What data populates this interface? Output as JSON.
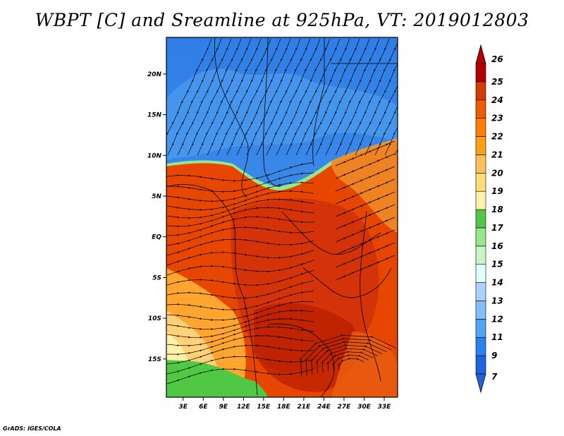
{
  "title": "WBPT [C] and Sreamline at 925hPa, VT: 2019012803",
  "credit": "GrADS: IGES/COLA",
  "map": {
    "lat_labels": [
      "20N",
      "15N",
      "10N",
      "5N",
      "EQ",
      "5S",
      "10S",
      "15S"
    ],
    "lat_values": [
      20,
      15,
      10,
      5,
      0,
      -5,
      -10,
      -15
    ],
    "lon_labels": [
      "3E",
      "6E",
      "9E",
      "12E",
      "15E",
      "18E",
      "21E",
      "24E",
      "27E",
      "30E",
      "33E"
    ],
    "lon_values": [
      3,
      6,
      9,
      12,
      15,
      18,
      21,
      24,
      27,
      30,
      33
    ],
    "lon_range": [
      0.5,
      35
    ],
    "lat_range": [
      -19.7,
      24.5
    ]
  },
  "colorbar": {
    "labels": [
      "7",
      "9",
      "11",
      "12",
      "13",
      "14",
      "15",
      "16",
      "17",
      "18",
      "19",
      "20",
      "21",
      "22",
      "23",
      "24",
      "25",
      "26"
    ],
    "colors": [
      "#1e64dc",
      "#2882f0",
      "#50a5f5",
      "#82beff",
      "#aad2ff",
      "#e1ffff",
      "#c8f5c8",
      "#96e68c",
      "#50c846",
      "#fff0aa",
      "#ffdc78",
      "#ffc05a",
      "#ffa014",
      "#ff7d00",
      "#f05a00",
      "#d23c00",
      "#b40000"
    ]
  },
  "colors": {
    "cold": "#2f7ee6",
    "warm": "#e64600",
    "hot": "#c31e00"
  }
}
